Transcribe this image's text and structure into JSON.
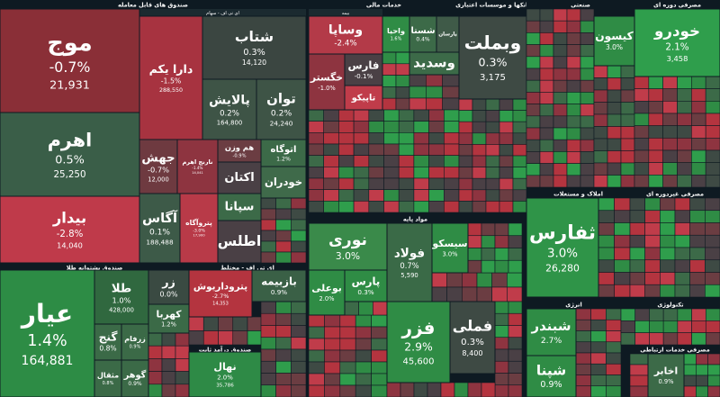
{
  "sectors": [
    {
      "title": "صندوق های قابل معامله",
      "subtitle": "ای تی اف - سهام",
      "tiles": [
        {
          "name": "موج",
          "change": "-0.7%",
          "volume": "21,931",
          "color": "#8a2f37"
        },
        {
          "name": "اهرم",
          "change": "0.5%",
          "volume": "25,250",
          "color": "#3a5e48"
        },
        {
          "name": "بیدار",
          "change": "-2.8%",
          "volume": "14,040",
          "color": "#bf3a4a"
        },
        {
          "name": "دارا یکم",
          "change": "-1.5%",
          "volume": "288,550",
          "color": "#a73340"
        },
        {
          "name": "شتاب",
          "change": "0.3%",
          "volume": "14,120",
          "color": "#3b4641"
        },
        {
          "name": "پالایش",
          "change": "0.2%",
          "volume": "164,800",
          "color": "#3e5446"
        },
        {
          "name": "توان",
          "change": "0.2%",
          "volume": "24,240",
          "color": "#3e5446"
        },
        {
          "name": "جهش",
          "change": "-0.7%",
          "volume": "12,000",
          "color": "#6e3a40"
        },
        {
          "name": "نارنج اهرم",
          "change": "-1.4%",
          "volume": "14,041",
          "color": "#8e3440"
        },
        {
          "name": "هم وزن",
          "change": "-0.9%",
          "color": "#6b3d42"
        },
        {
          "name": "اتوگاه",
          "change": "1.2%",
          "color": "#3c6a48"
        },
        {
          "name": "اکتان",
          "color": "#4a4045"
        },
        {
          "name": "خودران",
          "color": "#3f6a4a"
        },
        {
          "name": "آگاس",
          "change": "0.1%",
          "volume": "188,488",
          "color": "#3d5a48"
        },
        {
          "name": "پتروآگاه",
          "change": "-3.0%",
          "volume": "17,900",
          "color": "#b83a48"
        },
        {
          "name": "سپانا",
          "color": "#3c6a48"
        },
        {
          "name": "اطلس",
          "color": "#4a4045"
        }
      ]
    },
    {
      "title": "صندوق پشتوانه طلا",
      "tiles": [
        {
          "name": "عیار",
          "change": "1.4%",
          "volume": "164,881",
          "color": "#2d8c45"
        },
        {
          "name": "طلا",
          "change": "1.0%",
          "volume": "428,000",
          "color": "#30683f"
        },
        {
          "name": "زر",
          "change": "0.0%",
          "color": "#3a4a42"
        },
        {
          "name": "کهربا",
          "change": "1.2%",
          "color": "#3b6a47"
        },
        {
          "name": "گنج",
          "change": "0.8%",
          "color": "#3b6a47"
        },
        {
          "name": "زرفام",
          "change": "0.9%",
          "color": "#3b6a47"
        },
        {
          "name": "مثقال",
          "change": "0.8%",
          "color": "#3b6a47"
        },
        {
          "name": "گوهر",
          "change": "0.9%",
          "color": "#3b6a47"
        }
      ]
    },
    {
      "title": "ای تی اف - مختلط",
      "tiles": [
        {
          "name": "پتروداریوش",
          "change": "-2.7%",
          "volume": "14,353",
          "color": "#b4343f"
        },
        {
          "name": "بازبیمه",
          "change": "0.9%",
          "color": "#3a6046"
        }
      ]
    },
    {
      "title": "صندوق درآمد ثابت",
      "tiles": [
        {
          "name": "نهال",
          "change": "2.0%",
          "volume": "35,786",
          "color": "#2e8a46"
        }
      ]
    },
    {
      "title": "خدمات مالی",
      "subtitle": "بیمه",
      "tiles": [
        {
          "name": "وساپا",
          "change": "-2.4%",
          "color": "#b33a48"
        },
        {
          "name": "خگستر",
          "change": "-1.0%",
          "color": "#8e3440"
        },
        {
          "name": "فارس",
          "change": "-0.1%",
          "color": "#4a4045"
        },
        {
          "name": "تاپیکو",
          "color": "#c03c4a"
        },
        {
          "name": "واحیا",
          "change": "1.6%",
          "color": "#2f8c45"
        },
        {
          "name": "شستا",
          "change": "0.4%",
          "color": "#3c6a48"
        },
        {
          "name": "پارسان",
          "color": "#3f5a48"
        },
        {
          "name": "وسدید",
          "color": "#3c6a48"
        }
      ]
    },
    {
      "title": "بانکها و موسسات اعتباری",
      "tiles": [
        {
          "name": "وبملت",
          "change": "0.3%",
          "volume": "3,175",
          "color": "#3e4a44"
        }
      ]
    },
    {
      "title": "صنعتی",
      "tiles": [
        {
          "name": "کیسون",
          "change": "3.0%",
          "color": "#2f8c45"
        }
      ]
    },
    {
      "title": "مصرفی دوره ای",
      "tiles": [
        {
          "name": "خودرو",
          "change": "2.1%",
          "volume": "3,458",
          "color": "#2f9e4c"
        }
      ]
    },
    {
      "title": "املاک و مستغلات",
      "tiles": [
        {
          "name": "ثفارس",
          "change": "3.0%",
          "volume": "26,280",
          "color": "#2f9448"
        }
      ]
    },
    {
      "title": "مصرفی غیردوره ای",
      "tiles": []
    },
    {
      "title": "مواد پایه",
      "tiles": [
        {
          "name": "نوری",
          "change": "3.0%",
          "color": "#3a8a4a"
        },
        {
          "name": "بوعلی",
          "change": "2.0%",
          "color": "#2f8c45"
        },
        {
          "name": "پارس",
          "change": "0.3%",
          "color": "#2f8c45"
        },
        {
          "name": "فولاد",
          "change": "0.7%",
          "volume": "5,590",
          "color": "#3a6a47"
        },
        {
          "name": "سیسکو",
          "change": "3.0%",
          "color": "#2f8c45"
        },
        {
          "name": "فزر",
          "change": "2.9%",
          "volume": "45,600",
          "color": "#2f8c45"
        },
        {
          "name": "فملی",
          "change": "0.3%",
          "volume": "8,400",
          "color": "#3e4a44"
        }
      ]
    },
    {
      "title": "انرژی",
      "tiles": [
        {
          "name": "شبندر",
          "change": "2.7%",
          "color": "#2f8c45"
        },
        {
          "name": "شپنا",
          "change": "0.9%",
          "color": "#2f8c45"
        }
      ]
    },
    {
      "title": "تکنولوژی",
      "tiles": []
    },
    {
      "title": "مصرفی خدمات ارتباطی",
      "tiles": [
        {
          "name": "اخابر",
          "change": "0.9%",
          "color": "#3c6a48"
        }
      ]
    }
  ]
}
